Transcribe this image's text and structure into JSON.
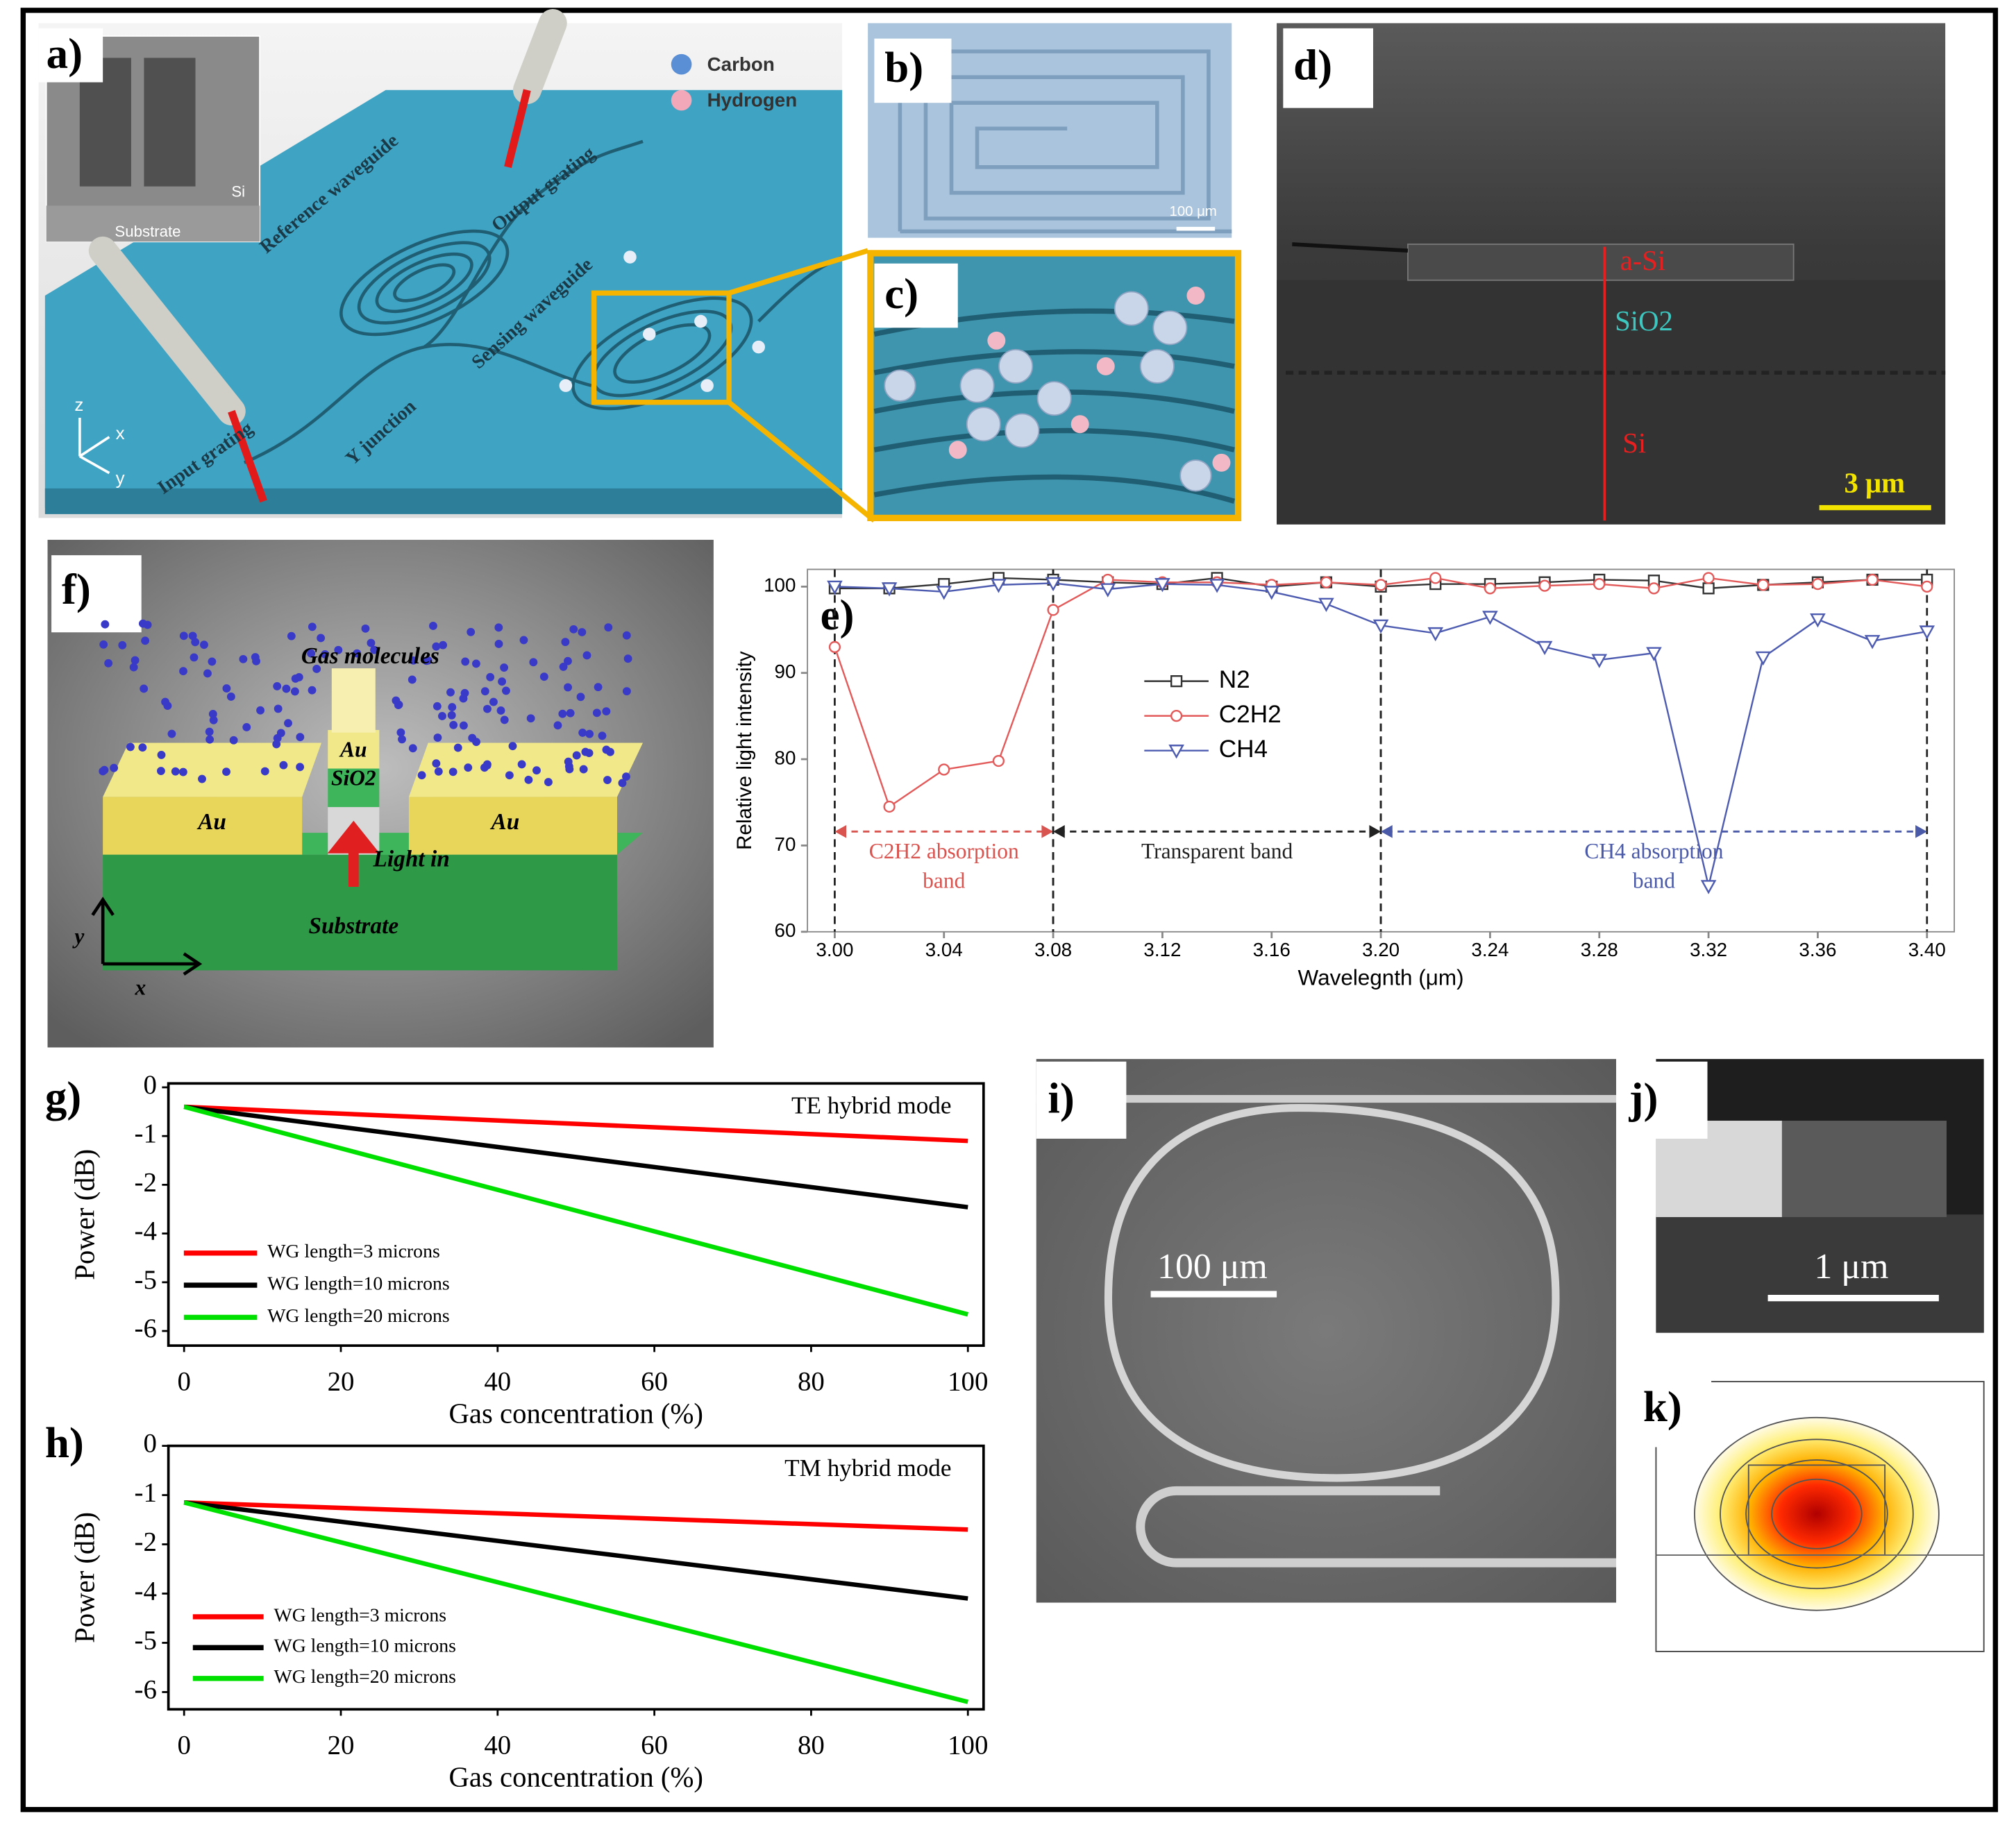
{
  "panels": {
    "a": {
      "label": "a)",
      "legend": [
        "Carbon",
        "Hydrogen"
      ],
      "inset": [
        "Si",
        "Substrate"
      ],
      "labels": [
        "Reference waveguide",
        "Output grating",
        "Sensing waveguide",
        "Y junction",
        "Input grating"
      ],
      "axes": [
        "z",
        "x",
        "y"
      ]
    },
    "b": {
      "label": "b)",
      "scale": "100 μm"
    },
    "c": {
      "label": "c)"
    },
    "d": {
      "label": "d)",
      "layers": [
        "a-Si",
        "SiO2",
        "Si"
      ],
      "scale": "3 μm"
    },
    "e": {
      "label": "e)"
    },
    "f": {
      "label": "f)",
      "texts": [
        "Gas molecules",
        "Au",
        "SiO2",
        "Au",
        "Au",
        "Light in",
        "Substrate"
      ],
      "axes": [
        "y",
        "x"
      ]
    },
    "g": {
      "label": "g)"
    },
    "h": {
      "label": "h)"
    },
    "i": {
      "label": "i)",
      "scale": "100 μm"
    },
    "j": {
      "label": "j)",
      "scale": "1 μm"
    },
    "k": {
      "label": "k)"
    }
  },
  "chart_data": [
    {
      "type": "line",
      "x_label": "Wavelegnth (μm)",
      "y_label": "Relative light intensity",
      "x": [
        3.0,
        3.02,
        3.04,
        3.06,
        3.08,
        3.1,
        3.12,
        3.14,
        3.16,
        3.18,
        3.2,
        3.22,
        3.24,
        3.26,
        3.28,
        3.3,
        3.32,
        3.34,
        3.36,
        3.38,
        3.4
      ],
      "series": [
        {
          "name": "N2",
          "color": "#333333",
          "marker": "square",
          "values": [
            99.8,
            99.8,
            100.3,
            101,
            100.8,
            100.5,
            100.3,
            101,
            100,
            100.5,
            100,
            100.3,
            100.3,
            100.5,
            100.8,
            100.7,
            99.8,
            100.2,
            100.5,
            100.8,
            100.8
          ]
        },
        {
          "name": "C2H2",
          "color": "#e35a5a",
          "marker": "circle",
          "values": [
            93,
            74.5,
            78.8,
            79.8,
            97.3,
            100.8,
            100.5,
            100.5,
            100.2,
            100.5,
            100.2,
            101,
            99.8,
            100.1,
            100.3,
            99.8,
            101,
            100.2,
            100.3,
            100.8,
            100
          ]
        },
        {
          "name": "CH4",
          "color": "#4d5bb0",
          "marker": "triangle-down",
          "values": [
            100,
            99.8,
            99.4,
            100.2,
            100.4,
            99.7,
            100.3,
            100.2,
            99.4,
            98,
            95.5,
            94.6,
            96.5,
            93,
            91.5,
            92.3,
            65.3,
            91.8,
            96.2,
            93.7,
            94.8
          ]
        }
      ],
      "annotations": [
        {
          "lines": [
            "C2H2 absorption",
            "band"
          ],
          "from": 3.0,
          "to": 3.08,
          "color": "#d9534f"
        },
        {
          "lines": [
            "Transparent band"
          ],
          "from": 3.08,
          "to": 3.2,
          "color": "#222222"
        },
        {
          "lines": [
            "CH4 absorption",
            "band"
          ],
          "from": 3.2,
          "to": 3.4,
          "color": "#4a5aa8"
        }
      ],
      "xlim": [
        2.99,
        3.41
      ],
      "xticks": [
        {
          "value": 3,
          "label": "3.00"
        },
        3.04,
        3.08,
        3.12,
        3.16,
        {
          "value": 3.2,
          "label": "3.20"
        },
        3.24,
        3.28,
        3.32,
        3.36,
        {
          "value": 3.4,
          "label": "3.40"
        }
      ],
      "ylim": [
        60,
        102
      ],
      "yticks": [
        60,
        70,
        80,
        90,
        100
      ]
    },
    {
      "type": "line",
      "title": "TE hybrid mode",
      "x_label": "Gas concentration (%)",
      "y_label": "Power (dB)",
      "x": [
        0,
        100
      ],
      "series": [
        {
          "name": "WG length=3 microns",
          "color": "#ff0000",
          "values": [
            -0.4,
            -1.1
          ]
        },
        {
          "name": "WG length=10 microns",
          "color": "#000000",
          "values": [
            -0.4,
            -2.92
          ]
        },
        {
          "name": "WG length=20 microns",
          "color": "#00e000",
          "values": [
            -0.4,
            -5.66
          ]
        }
      ],
      "xlim": [
        -2,
        102
      ],
      "xticks": [
        0,
        20,
        40,
        60,
        80,
        100
      ],
      "ylim": [
        -6.3,
        0.08
      ],
      "yticks": [
        0,
        -1,
        -2,
        -4,
        -5,
        -6
      ]
    },
    {
      "type": "line",
      "title": "TM hybrid mode",
      "x_label": "Gas concentration (%)",
      "y_label": "Power (dB)",
      "x": [
        0,
        100
      ],
      "series": [
        {
          "name": "WG length=3 microns",
          "color": "#ff0000",
          "values": [
            -1.15,
            -1.7
          ]
        },
        {
          "name": "WG length=10 microns",
          "color": "#000000",
          "values": [
            -1.15,
            -4.1
          ]
        },
        {
          "name": "WG length=20 microns",
          "color": "#00e000",
          "values": [
            -1.15,
            -6.2
          ]
        }
      ],
      "xlim": [
        -2,
        102
      ],
      "xticks": [
        0,
        20,
        40,
        60,
        80,
        100
      ],
      "ylim": [
        -6.35,
        0
      ],
      "yticks": [
        0,
        -1,
        -2,
        -4,
        -5,
        -6
      ]
    }
  ]
}
